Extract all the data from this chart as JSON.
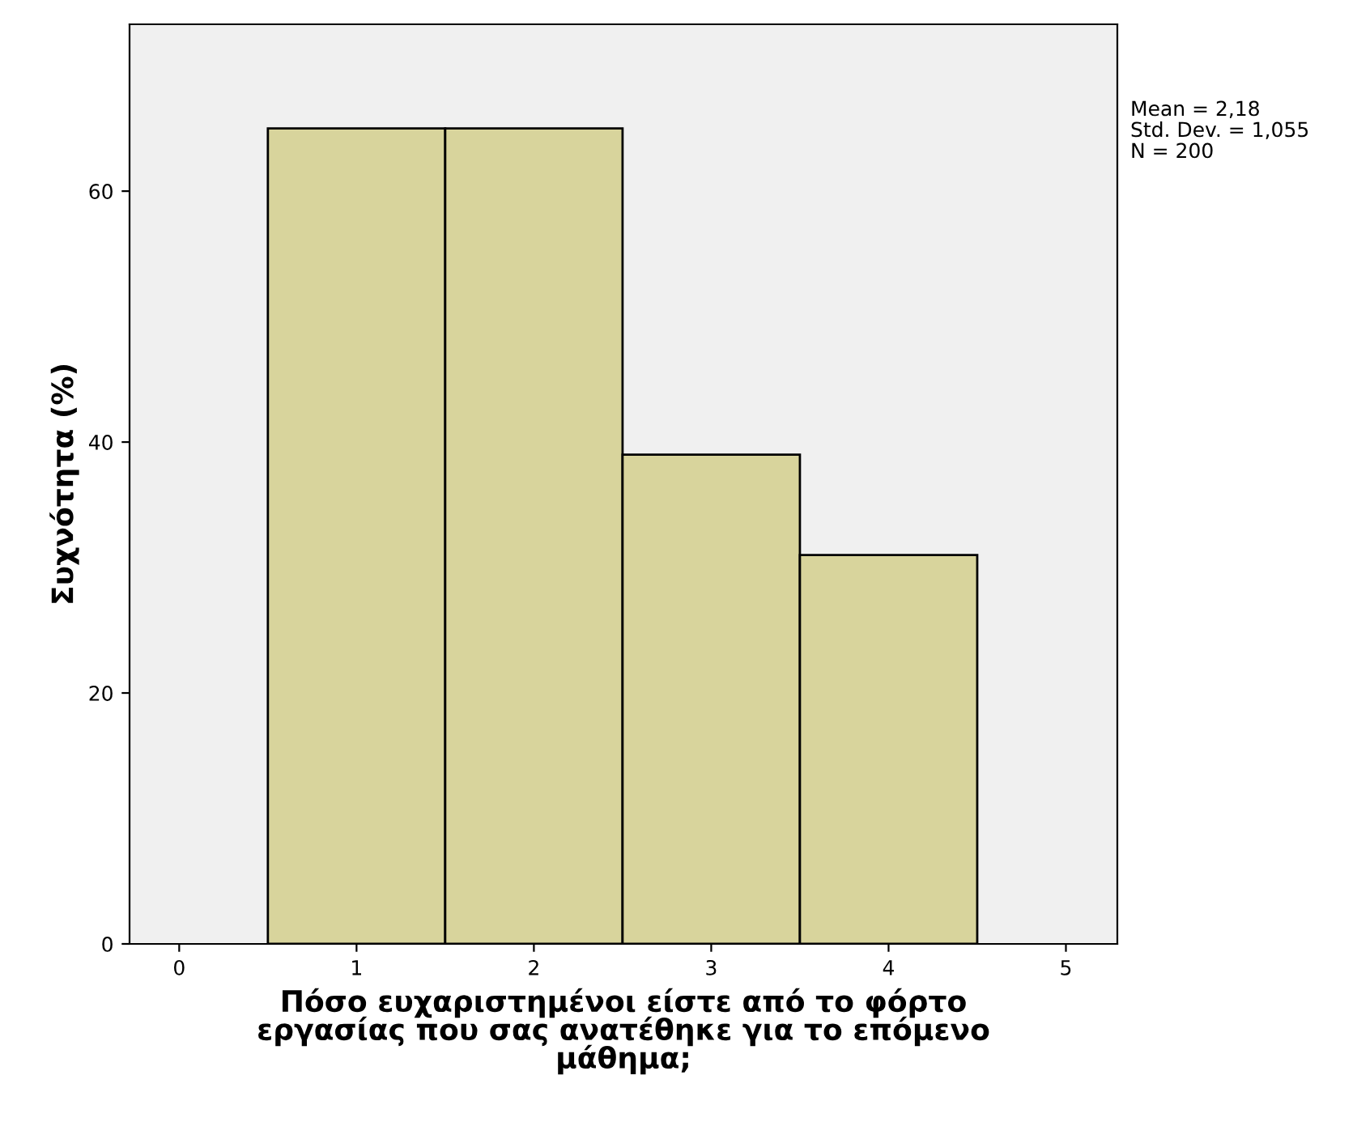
{
  "chart_data": {
    "type": "histogram",
    "xlabel": "Πόσο ευχαριστημένοι είστε από το φόρτο\nεργασίας που σας ανατέθηκε για το επόμενο\nμάθημα;",
    "ylabel": "Συχνότητα (%)",
    "bins": [
      0.5,
      1.5,
      2.5,
      3.5,
      4.5
    ],
    "values": [
      65,
      65,
      39,
      31
    ],
    "color": "#d8d49c",
    "xlim": [
      -0.28,
      5.29
    ],
    "xticks": [
      0,
      1,
      2,
      3,
      4,
      5
    ],
    "ylim": [
      0,
      73.3
    ],
    "yticks": [
      0,
      20,
      40,
      60
    ],
    "annotations": [
      "Mean = 2,18",
      "Std. Dev. = 1,055",
      "N = 200"
    ],
    "grid": false,
    "legend": false
  }
}
